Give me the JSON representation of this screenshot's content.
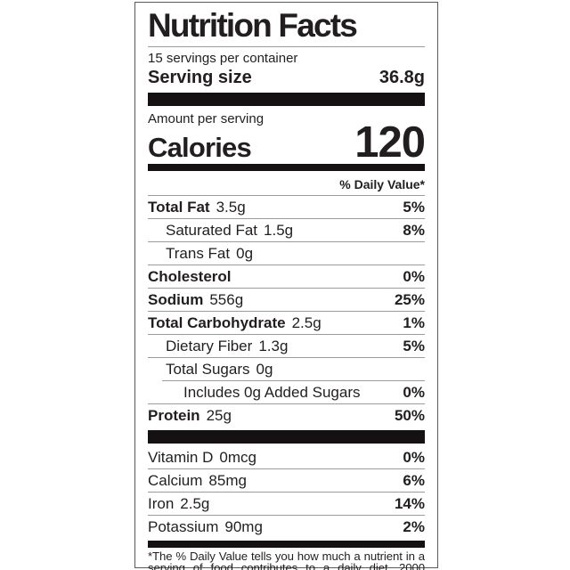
{
  "label": {
    "title": "Nutrition Facts",
    "servings_per_container": "15 servings per container",
    "serving_size_label": "Serving size",
    "serving_size_value": "36.8g",
    "amount_per_serving_label": "Amount per serving",
    "calories_label": "Calories",
    "calories_value": "120",
    "daily_value_header": "% Daily Value*",
    "footnote": "*The % Daily Value tells you how much a nutrient in a serving of food contributes to a daily diet. 2000 calories a day is used for general nutrition"
  },
  "nutrients": [
    {
      "name": "Total Fat",
      "amount": "3.5g",
      "dv": "5%"
    },
    {
      "name": "Saturated Fat",
      "amount": "1.5g",
      "dv": "8%"
    },
    {
      "name": "Trans Fat",
      "amount": "0g",
      "dv": ""
    },
    {
      "name": "Cholesterol",
      "amount": "",
      "dv": "0%"
    },
    {
      "name": "Sodium",
      "amount": "556g",
      "dv": "25%"
    },
    {
      "name": "Total Carbohydrate",
      "amount": "2.5g",
      "dv": "1%"
    },
    {
      "name": "Dietary Fiber",
      "amount": "1.3g",
      "dv": "5%"
    },
    {
      "name": "Total Sugars",
      "amount": "0g",
      "dv": ""
    },
    {
      "name": "Includes 0g Added Sugars",
      "amount": "",
      "dv": "0%"
    },
    {
      "name": "Protein",
      "amount": "25g",
      "dv": "50%"
    }
  ],
  "micronutrients": [
    {
      "name": "Vitamin D",
      "amount": "0mcg",
      "dv": "0%"
    },
    {
      "name": "Calcium",
      "amount": "85mg",
      "dv": "6%"
    },
    {
      "name": "Iron",
      "amount": "2.5g",
      "dv": "14%"
    },
    {
      "name": "Potassium",
      "amount": "90mg",
      "dv": "2%"
    }
  ],
  "colors": {
    "text": "#221e1f",
    "bar": "#151112",
    "hairline": "#9b9b9b",
    "border": "#59595b"
  }
}
